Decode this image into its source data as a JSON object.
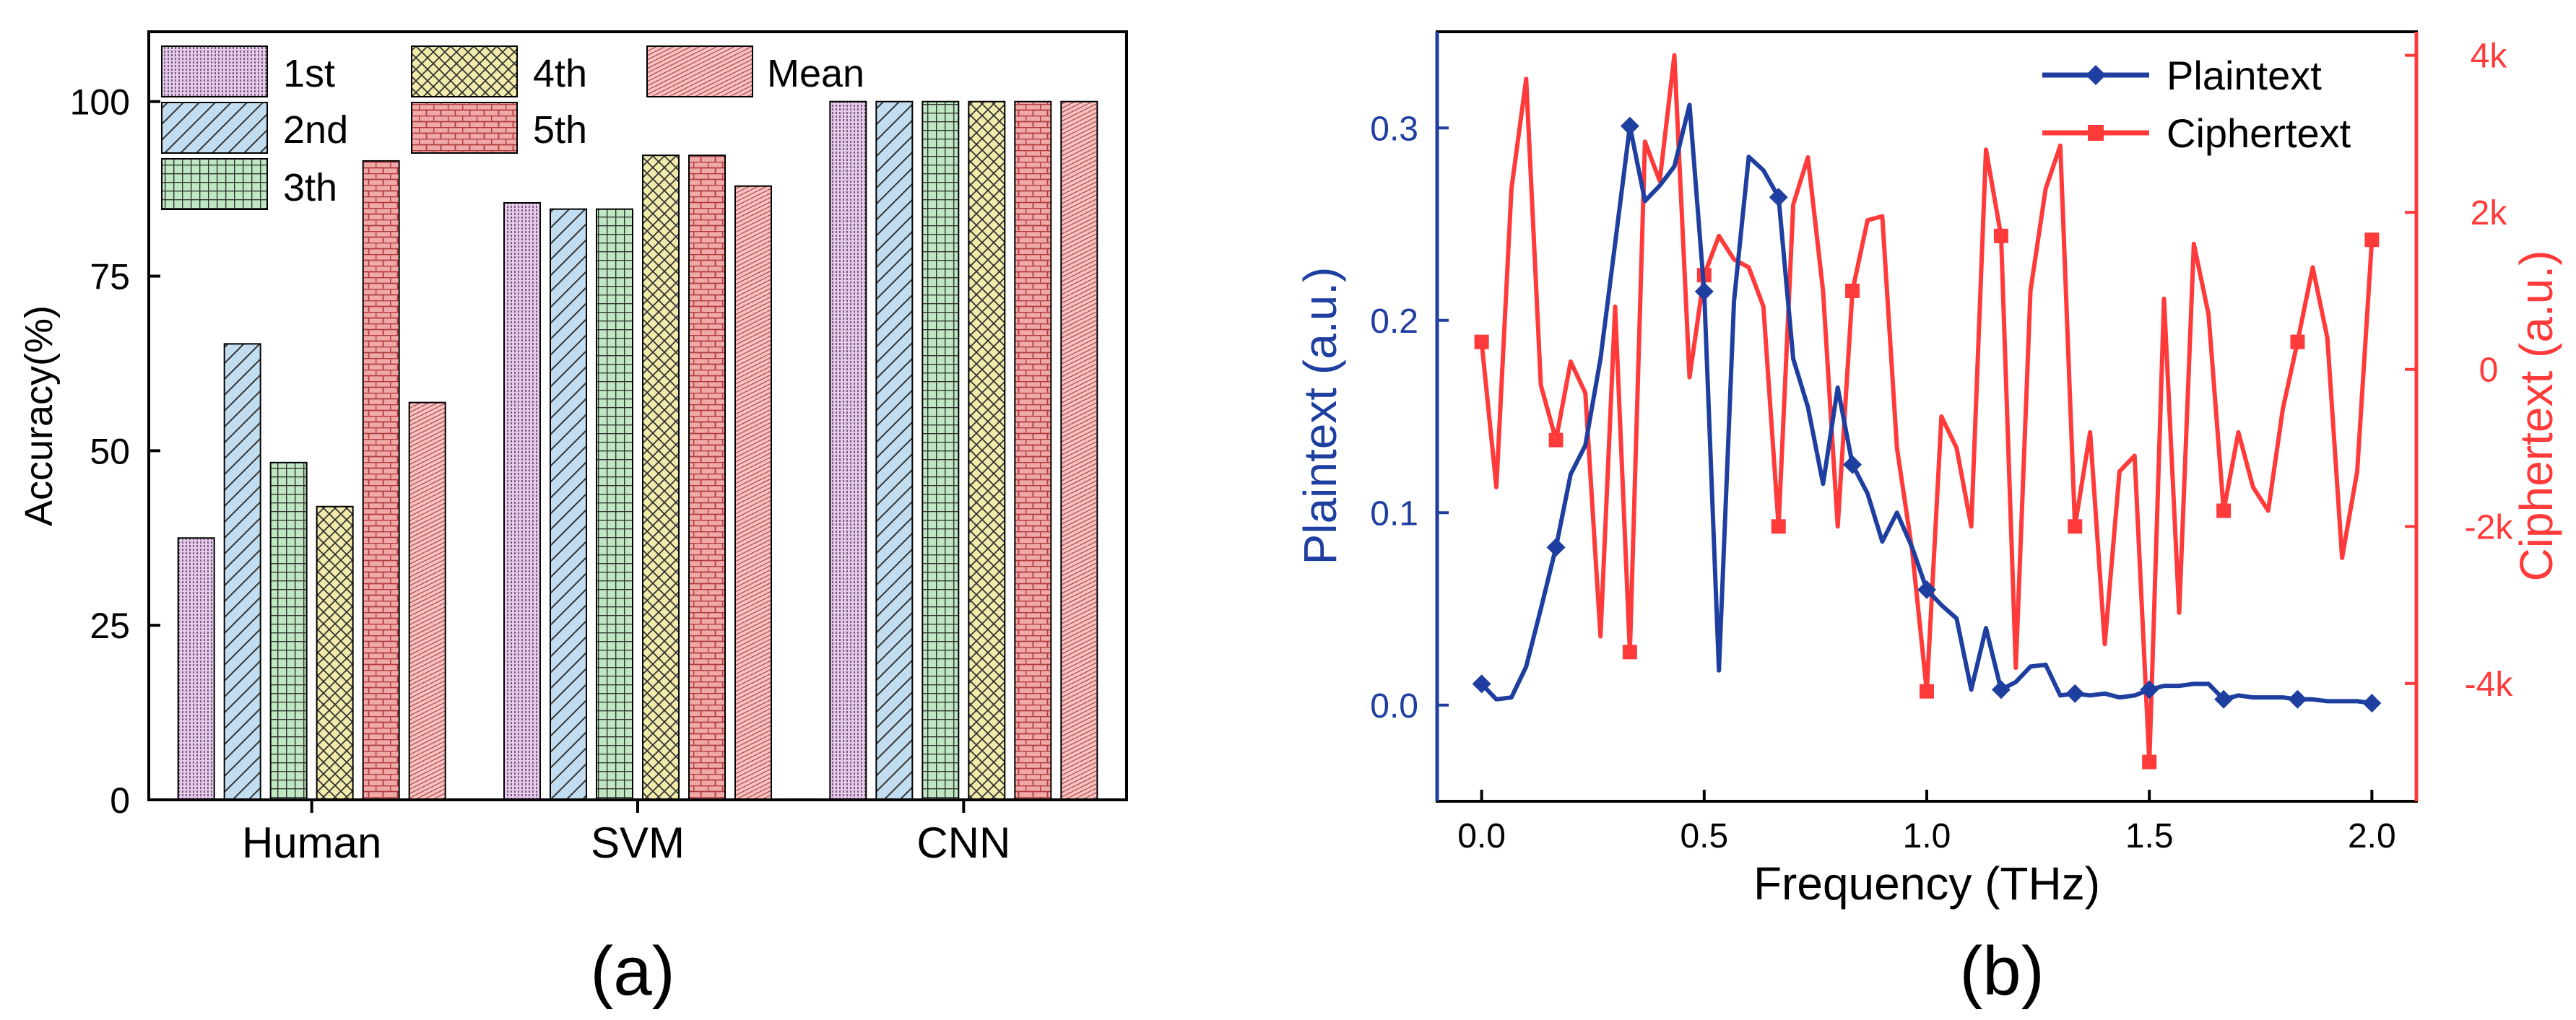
{
  "colors": {
    "axis": "#000000",
    "bar_1st": "#e8c8ee",
    "bar_2nd": "#c2ddef",
    "bar_3th": "#bfe8c2",
    "bar_4th": "#f0ebab",
    "bar_5th": "#f0a9a9",
    "bar_mean": "#f6c2c2",
    "plaintext": "#1f3fa0",
    "ciphertext": "#ff3a3a"
  },
  "chart_data": [
    {
      "panel_label": "(a)",
      "type": "bar",
      "title": "",
      "xlabel": "",
      "ylabel": "Accuracy(%)",
      "ylim": [
        0,
        110
      ],
      "yticks": [
        0,
        25,
        50,
        75,
        100
      ],
      "ytick_labels": [
        "0",
        "25",
        "50",
        "75",
        "100"
      ],
      "categories": [
        "Human",
        "SVM",
        "CNN"
      ],
      "legend_position": "top-left",
      "series": [
        {
          "name": "1st",
          "pattern": "dense-vertical-hatch",
          "values": [
            37.5,
            85.5,
            100
          ]
        },
        {
          "name": "2nd",
          "pattern": "diagonal-hatch",
          "values": [
            65.3,
            84.6,
            100
          ]
        },
        {
          "name": "3th",
          "pattern": "grid",
          "values": [
            48.3,
            84.6,
            100
          ]
        },
        {
          "name": "4th",
          "pattern": "crosshatch",
          "values": [
            42.0,
            92.3,
            100
          ]
        },
        {
          "name": "5th",
          "pattern": "brick",
          "values": [
            91.5,
            92.3,
            100
          ]
        },
        {
          "name": "Mean",
          "pattern": "fine-hatch",
          "values": [
            56.9,
            87.9,
            100
          ]
        }
      ]
    },
    {
      "panel_label": "(b)",
      "type": "line",
      "title": "",
      "xlabel": "Frequency (THz)",
      "ylabel": "Plaintext (a.u.)",
      "y2label": "Ciphertext (a.u.)",
      "xlim": [
        -0.1,
        2.1
      ],
      "xticks": [
        0,
        0.5,
        1.0,
        1.5,
        2.0
      ],
      "xtick_labels": [
        "0.0",
        "0.5",
        "1.0",
        "1.5",
        "2.0"
      ],
      "ylim": [
        -0.05,
        0.35
      ],
      "yticks": [
        0,
        0.1,
        0.2,
        0.3
      ],
      "ytick_labels": [
        "0.0",
        "0.1",
        "0.2",
        "0.3"
      ],
      "y2lim": [
        -5500,
        4300
      ],
      "y2ticks": [
        -4000,
        -2000,
        0,
        2000,
        4000
      ],
      "y2tick_labels": [
        "-4k",
        "-2k",
        "0",
        "2k",
        "4k"
      ],
      "legend_position": "top-right",
      "series": [
        {
          "name": "Plaintext",
          "axis": "left",
          "marker": "diamond",
          "marker_every": 5,
          "x": [
            0,
            0.033,
            0.067,
            0.1,
            0.133,
            0.167,
            0.2,
            0.233,
            0.267,
            0.3,
            0.333,
            0.367,
            0.4,
            0.433,
            0.467,
            0.5,
            0.533,
            0.567,
            0.6,
            0.633,
            0.667,
            0.7,
            0.733,
            0.767,
            0.8,
            0.833,
            0.867,
            0.9,
            0.933,
            0.967,
            1.0,
            1.033,
            1.067,
            1.1,
            1.133,
            1.167,
            1.2,
            1.233,
            1.267,
            1.3,
            1.333,
            1.367,
            1.4,
            1.433,
            1.467,
            1.5,
            1.533,
            1.567,
            1.6,
            1.633,
            1.667,
            1.7,
            1.733,
            1.767,
            1.8,
            1.833,
            1.867,
            1.9,
            1.933,
            1.967,
            2.0
          ],
          "y": [
            0.011,
            0.003,
            0.004,
            0.02,
            0.05,
            0.082,
            0.12,
            0.135,
            0.18,
            0.24,
            0.301,
            0.262,
            0.27,
            0.28,
            0.312,
            0.215,
            0.018,
            0.21,
            0.285,
            0.278,
            0.264,
            0.18,
            0.155,
            0.115,
            0.165,
            0.125,
            0.11,
            0.085,
            0.1,
            0.082,
            0.06,
            0.052,
            0.045,
            0.008,
            0.04,
            0.008,
            0.012,
            0.02,
            0.021,
            0.005,
            0.006,
            0.005,
            0.006,
            0.004,
            0.005,
            0.008,
            0.01,
            0.01,
            0.011,
            0.011,
            0.003,
            0.005,
            0.004,
            0.004,
            0.004,
            0.003,
            0.003,
            0.002,
            0.002,
            0.002,
            0.001
          ]
        },
        {
          "name": "Ciphertext",
          "axis": "right",
          "marker": "square",
          "marker_every": 5,
          "x": [
            0,
            0.033,
            0.067,
            0.1,
            0.133,
            0.167,
            0.2,
            0.233,
            0.267,
            0.3,
            0.333,
            0.367,
            0.4,
            0.433,
            0.467,
            0.5,
            0.533,
            0.567,
            0.6,
            0.633,
            0.667,
            0.7,
            0.733,
            0.767,
            0.8,
            0.833,
            0.867,
            0.9,
            0.933,
            0.967,
            1.0,
            1.033,
            1.067,
            1.1,
            1.133,
            1.167,
            1.2,
            1.233,
            1.267,
            1.3,
            1.333,
            1.367,
            1.4,
            1.433,
            1.467,
            1.5,
            1.533,
            1.567,
            1.6,
            1.633,
            1.667,
            1.7,
            1.733,
            1.767,
            1.8,
            1.833,
            1.867,
            1.9,
            1.933,
            1.967,
            2.0
          ],
          "y": [
            350,
            -1500,
            2300,
            3700,
            -200,
            -900,
            100,
            -300,
            -3400,
            800,
            -3600,
            2900,
            2400,
            4000,
            -100,
            1200,
            1700,
            1400,
            1300,
            800,
            -2000,
            2100,
            2700,
            1000,
            -2000,
            1000,
            1900,
            1950,
            -1000,
            -2300,
            -4100,
            -600,
            -1000,
            -2000,
            2800,
            1700,
            -3800,
            1000,
            2300,
            2850,
            -2000,
            -800,
            -3500,
            -1300,
            -1100,
            -5000,
            900,
            -3100,
            1600,
            700,
            -1800,
            -800,
            -1500,
            -1800,
            -500,
            350,
            1300,
            400,
            -2400,
            -1300,
            1650
          ]
        }
      ]
    }
  ]
}
